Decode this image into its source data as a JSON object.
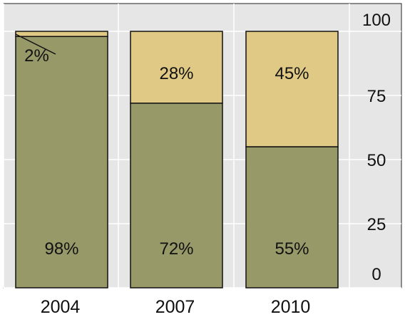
{
  "chart_data": {
    "type": "bar",
    "stacked": true,
    "categories": [
      "2004",
      "2007",
      "2010"
    ],
    "series": [
      {
        "values": [
          98,
          72,
          55
        ],
        "color": "#979969"
      },
      {
        "values": [
          2,
          28,
          45
        ],
        "color": "#dfc985"
      }
    ],
    "data_labels": [
      [
        "98%",
        "72%",
        "55%"
      ],
      [
        "2%",
        "28%",
        "45%"
      ]
    ],
    "y_axis": {
      "position": "right",
      "ticks": [
        "0",
        "25",
        "50",
        "75",
        "100"
      ],
      "ylim": [
        0,
        100
      ]
    },
    "plot_background": "#e6e6e6",
    "grid": true,
    "title": "",
    "xlabel": "",
    "ylabel": ""
  }
}
